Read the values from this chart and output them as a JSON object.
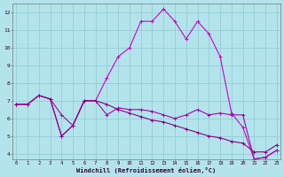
{
  "xlabel": "Windchill (Refroidissement éolien,°C)",
  "bg_color": "#b3e4ec",
  "grid_color": "#96cdd6",
  "line_color1": "#aa00aa",
  "line_color2": "#cc00cc",
  "line_color3": "#880088",
  "hours": [
    0,
    1,
    2,
    3,
    4,
    5,
    6,
    7,
    8,
    9,
    10,
    11,
    12,
    13,
    14,
    15,
    16,
    17,
    18,
    19,
    20,
    21,
    22,
    23
  ],
  "series1": [
    6.8,
    6.8,
    7.3,
    7.1,
    6.2,
    5.6,
    7.0,
    7.0,
    6.2,
    6.6,
    6.5,
    6.5,
    6.4,
    6.2,
    6.0,
    6.2,
    6.5,
    6.2,
    6.3,
    6.2,
    6.2,
    3.7,
    3.8,
    4.2
  ],
  "series2": [
    6.8,
    6.8,
    7.3,
    7.1,
    5.0,
    5.6,
    7.0,
    7.0,
    8.3,
    9.5,
    10.0,
    11.5,
    11.5,
    12.2,
    11.5,
    10.5,
    11.5,
    10.8,
    9.5,
    6.3,
    5.5,
    3.7,
    3.8,
    4.2
  ],
  "series3": [
    6.8,
    6.8,
    7.3,
    7.1,
    5.0,
    5.6,
    7.0,
    7.0,
    6.8,
    6.5,
    6.3,
    6.1,
    5.9,
    5.8,
    5.6,
    5.4,
    5.2,
    5.0,
    4.9,
    4.7,
    4.6,
    4.1,
    4.1,
    4.5
  ],
  "ylim": [
    3.7,
    12.5
  ],
  "xlim": [
    -0.3,
    23.3
  ],
  "yticks": [
    4,
    5,
    6,
    7,
    8,
    9,
    10,
    11,
    12
  ],
  "xticks": [
    0,
    1,
    2,
    3,
    4,
    5,
    6,
    7,
    8,
    9,
    10,
    11,
    12,
    13,
    14,
    15,
    16,
    17,
    18,
    19,
    20,
    21,
    22,
    23
  ]
}
